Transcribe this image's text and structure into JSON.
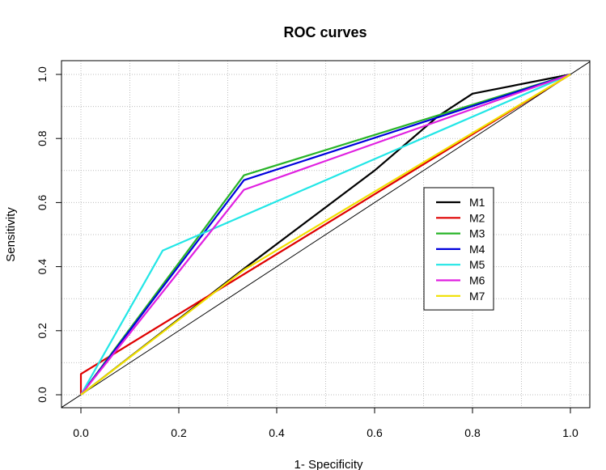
{
  "chart_data": {
    "type": "line",
    "title": "ROC curves",
    "xlabel": "1- Specificity",
    "ylabel": "Sensitivity",
    "xlim": [
      0,
      1
    ],
    "ylim": [
      0,
      1
    ],
    "x_ticks": [
      "0.0",
      "0.2",
      "0.4",
      "0.6",
      "0.8",
      "1.0"
    ],
    "y_ticks": [
      "0.0",
      "0.2",
      "0.4",
      "0.6",
      "0.8",
      "1.0"
    ],
    "grid": true,
    "grid_style": "dotted",
    "reference_line": {
      "from": [
        0,
        0
      ],
      "to": [
        1,
        1
      ],
      "color": "#000000"
    },
    "legend_position": "center-right",
    "series": [
      {
        "name": "M1",
        "color": "#000000",
        "x": [
          0,
          0.33,
          0.6,
          0.73,
          0.8,
          1.0
        ],
        "y": [
          0,
          0.39,
          0.7,
          0.87,
          0.94,
          1.0
        ]
      },
      {
        "name": "M2",
        "color": "#DF0000",
        "x": [
          0,
          0,
          1.0
        ],
        "y": [
          0,
          0.065,
          1.0
        ]
      },
      {
        "name": "M3",
        "color": "#28B428",
        "x": [
          0,
          0.333,
          1.0
        ],
        "y": [
          0,
          0.685,
          1.0
        ]
      },
      {
        "name": "M4",
        "color": "#0000DD",
        "x": [
          0,
          0.333,
          1.0
        ],
        "y": [
          0,
          0.67,
          1.0
        ]
      },
      {
        "name": "M5",
        "color": "#22E6E6",
        "x": [
          0,
          0.167,
          1.0
        ],
        "y": [
          0,
          0.45,
          1.0
        ]
      },
      {
        "name": "M6",
        "color": "#E020E0",
        "x": [
          0,
          0.333,
          1.0
        ],
        "y": [
          0,
          0.64,
          1.0
        ]
      },
      {
        "name": "M7",
        "color": "#F0E000",
        "x": [
          0,
          0.333,
          1.0
        ],
        "y": [
          0,
          0.39,
          1.0
        ]
      }
    ]
  }
}
